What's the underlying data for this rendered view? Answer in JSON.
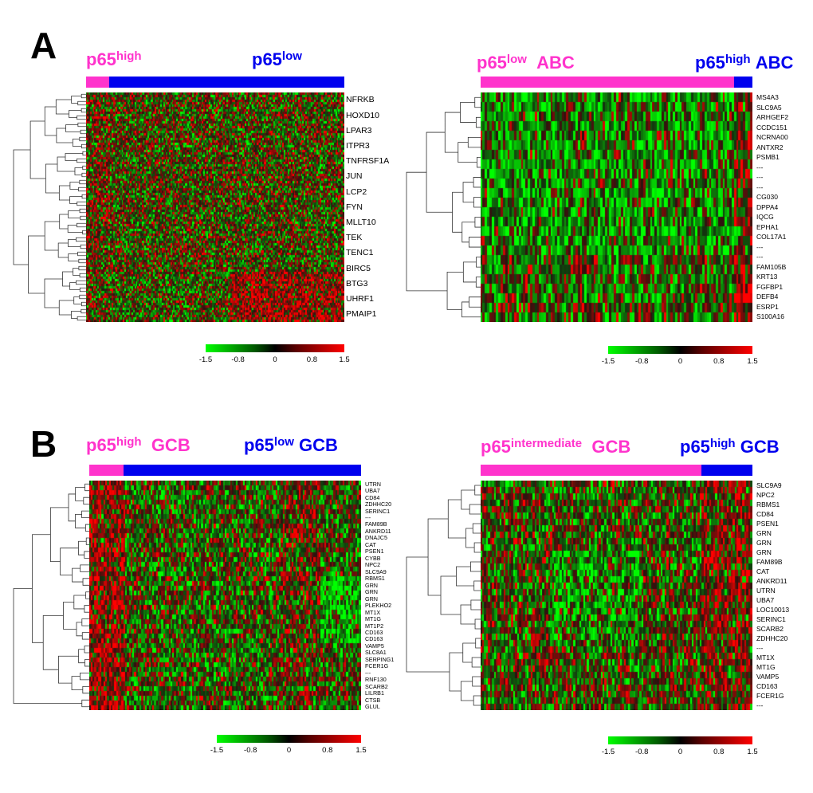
{
  "panel_a": {
    "letter": "A",
    "left": {
      "group1": {
        "base": "p65",
        "sup": "high",
        "suffix": ""
      },
      "group2": {
        "base": "p65",
        "sup": "low",
        "suffix": ""
      },
      "genes": [
        "NFRKB",
        "HOXD10",
        "LPAR3",
        "ITPR3",
        "TNFRSF1A",
        "JUN",
        "LCP2",
        "FYN",
        "MLLT10",
        "TEK",
        "TENC1",
        "BIRC5",
        "BTG3",
        "UHRF1",
        "PMAIP1"
      ],
      "bar_split_fraction": 0.09,
      "colors": {
        "group1": "#ff33cc",
        "group2": "#0000ee"
      }
    },
    "right": {
      "group1": {
        "base": "p65",
        "sup": "low",
        "suffix": "ABC"
      },
      "group2": {
        "base": "p65",
        "sup": "high",
        "suffix": "ABC"
      },
      "genes": [
        "MS4A3",
        "SLC9A5",
        "ARHGEF2",
        "CCDC151",
        "NCRNA00",
        "ANTXR2",
        "PSMB1",
        "---",
        "---",
        "---",
        "CG030",
        "DPPA4",
        "IQCG",
        "EPHA1",
        "COL17A1",
        "---",
        "---",
        "FAM105B",
        "KRT13",
        "FGFBP1",
        "DEFB4",
        "ESRP1",
        "S100A16"
      ],
      "bar_split_fraction": 0.93,
      "colors": {
        "group1": "#ff33cc",
        "group2": "#0000ee"
      }
    }
  },
  "panel_b": {
    "letter": "B",
    "left": {
      "group1": {
        "base": "p65",
        "sup": "high",
        "suffix": "GCB"
      },
      "group2": {
        "base": "p65",
        "sup": "low",
        "suffix": "GCB"
      },
      "genes": [
        "UTRN",
        "UBA7",
        "CD84",
        "ZDHHC20",
        "SERINC1",
        "---",
        "FAM89B",
        "ANKRD11",
        "DNAJC5",
        "CAT",
        "PSEN1",
        "CYBB",
        "NPC2",
        "SLC9A9",
        "RBMS1",
        "GRN",
        "GRN",
        "GRN",
        "PLEKHO2",
        "MT1X",
        "MT1G",
        "MT1P2",
        "CD163",
        "CD163",
        "VAMP5",
        "SLC8A1",
        "SERPING1",
        "FCER1G",
        "---",
        "RNF130",
        "SCARB2",
        "LILRB1",
        "CTSB",
        "GLUL"
      ],
      "bar_split_fraction": 0.13,
      "colors": {
        "group1": "#ff33cc",
        "group2": "#0000ee"
      }
    },
    "right": {
      "group1": {
        "base": "p65",
        "sup": "intermediate",
        "suffix": "GCB"
      },
      "group2": {
        "base": "p65",
        "sup": "high",
        "suffix": "GCB"
      },
      "genes": [
        "SLC9A9",
        "NPC2",
        "RBMS1",
        "CD84",
        "PSEN1",
        "GRN",
        "GRN",
        "GRN",
        "FAM89B",
        "CAT",
        "ANKRD11",
        "UTRN",
        "UBA7",
        "LOC10013",
        "SERINC1",
        "SCARB2",
        "ZDHHC20",
        "---",
        "MT1X",
        "MT1G",
        "VAMP5",
        "CD163",
        "FCER1G",
        "---"
      ],
      "bar_split_fraction": 0.81,
      "colors": {
        "group1": "#ff33cc",
        "group2": "#0000ee"
      }
    }
  },
  "color_scale": {
    "ticks": [
      "-1.5",
      "-0.8",
      "0",
      "0.8",
      "1.5"
    ],
    "tick_values": [
      -1.5,
      -0.8,
      0,
      0.8,
      1.5
    ],
    "min": -1.5,
    "max": 1.5,
    "low_color": "#00ff00",
    "mid_color": "#000000",
    "high_color": "#ff0000"
  }
}
